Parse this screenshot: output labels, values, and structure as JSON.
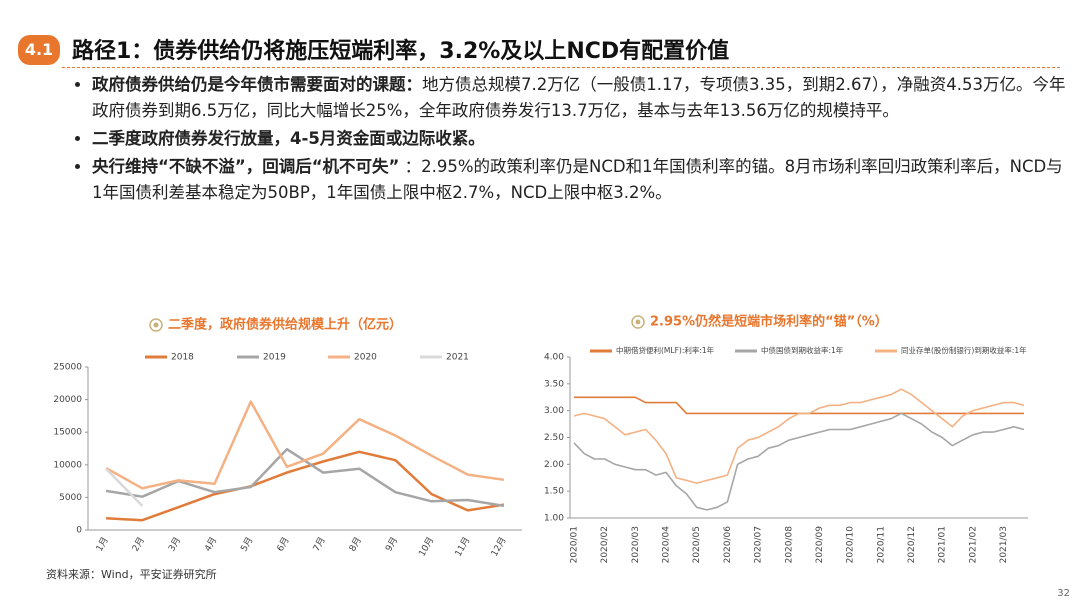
{
  "header": {
    "badge": "4.1",
    "title": "路径1：债券供给仍将施压短端利率，3.2%及以上NCD有配置价值"
  },
  "bullets": [
    {
      "lead": "政府债券供给仍是今年债市需要面对的课题：",
      "text": "地方债总规模7.2万亿（一般债1.17，专项债3.35，到期2.67），净融资4.53万亿。今年政府债券到期6.5万亿，同比大幅增长25%，全年政府债券发行13.7万亿，基本与去年13.56万亿的规模持平。"
    },
    {
      "lead": "二季度政府债券发行放量，4-5月资金面或边际收紧。",
      "text": ""
    },
    {
      "lead": "央行维持“不缺不溢”，回调后“机不可失”",
      "text": " ：2.95%的政策利率仍是NCD和1年国债利率的锚。8月市场利率回归政策利率后，NCD与1年国债利差基本稳定为50BP，1年国债上限中枢2.7%，NCD上限中枢3.2%。"
    }
  ],
  "chart_data": [
    {
      "type": "line",
      "title": "二季度，政府债券供给规模上升（亿元）",
      "categories": [
        "1月",
        "2月",
        "3月",
        "4月",
        "5月",
        "6月",
        "7月",
        "8月",
        "9月",
        "10月",
        "11月",
        "12月"
      ],
      "series": [
        {
          "name": "2018",
          "color": "#e07b39",
          "values": [
            1800,
            1500,
            3500,
            5500,
            6700,
            8800,
            10500,
            12000,
            10700,
            5500,
            3000,
            3900
          ]
        },
        {
          "name": "2019",
          "color": "#a6a6a6",
          "values": [
            6000,
            5100,
            7500,
            5800,
            6600,
            12400,
            8800,
            9400,
            5800,
            4400,
            4600,
            3700
          ]
        },
        {
          "name": "2020",
          "color": "#f4b183",
          "values": [
            9500,
            6400,
            7600,
            7100,
            19700,
            9700,
            11700,
            17000,
            14500,
            11400,
            8500,
            7700
          ]
        },
        {
          "name": "2021",
          "color": "#d9d9d9",
          "values": [
            9400,
            3700,
            null,
            null,
            null,
            null,
            null,
            null,
            null,
            null,
            null,
            null
          ]
        }
      ],
      "ylim": [
        0,
        25000
      ],
      "yticks": [
        0,
        5000,
        10000,
        15000,
        20000,
        25000
      ],
      "grid": false
    },
    {
      "type": "line",
      "title": "2.95%仍然是短端市场利率的“锚”（%）",
      "categories": [
        "2020/01",
        null,
        null,
        "2020/02",
        null,
        null,
        "2020/03",
        null,
        null,
        "2020/04",
        null,
        null,
        "2020/05",
        null,
        null,
        "2020/06",
        null,
        null,
        "2020/07",
        null,
        null,
        "2020/08",
        null,
        null,
        "2020/09",
        null,
        null,
        "2020/10",
        null,
        null,
        "2020/11",
        null,
        null,
        "2020/12",
        null,
        null,
        "2021/01",
        null,
        null,
        "2021/02",
        null,
        null,
        "2021/03",
        null,
        null
      ],
      "series": [
        {
          "name": "中期借贷便利(MLF):利率:1年",
          "color": "#e07b39",
          "values": [
            3.25,
            3.25,
            3.25,
            3.25,
            3.25,
            3.25,
            3.25,
            3.15,
            3.15,
            3.15,
            3.15,
            2.95,
            2.95,
            2.95,
            2.95,
            2.95,
            2.95,
            2.95,
            2.95,
            2.95,
            2.95,
            2.95,
            2.95,
            2.95,
            2.95,
            2.95,
            2.95,
            2.95,
            2.95,
            2.95,
            2.95,
            2.95,
            2.95,
            2.95,
            2.95,
            2.95,
            2.95,
            2.95,
            2.95,
            2.95,
            2.95,
            2.95,
            2.95,
            2.95,
            2.95
          ]
        },
        {
          "name": "中债国债到期收益率:1年",
          "color": "#a6a6a6",
          "values": [
            2.4,
            2.2,
            2.1,
            2.1,
            2.0,
            1.95,
            1.9,
            1.9,
            1.8,
            1.85,
            1.6,
            1.45,
            1.2,
            1.15,
            1.2,
            1.3,
            2.0,
            2.1,
            2.15,
            2.3,
            2.35,
            2.45,
            2.5,
            2.55,
            2.6,
            2.65,
            2.65,
            2.65,
            2.7,
            2.75,
            2.8,
            2.85,
            2.95,
            2.85,
            2.75,
            2.6,
            2.5,
            2.35,
            2.45,
            2.55,
            2.6,
            2.6,
            2.65,
            2.7,
            2.65
          ]
        },
        {
          "name": "同业存单(股份制银行)到期收益率:1年",
          "color": "#f4b183",
          "values": [
            2.9,
            2.95,
            2.9,
            2.85,
            2.7,
            2.55,
            2.6,
            2.65,
            2.45,
            2.2,
            1.75,
            1.7,
            1.65,
            1.7,
            1.75,
            1.8,
            2.3,
            2.45,
            2.5,
            2.6,
            2.7,
            2.85,
            2.95,
            2.95,
            3.05,
            3.1,
            3.1,
            3.15,
            3.15,
            3.2,
            3.25,
            3.3,
            3.4,
            3.3,
            3.15,
            3.0,
            2.85,
            2.7,
            2.9,
            3.0,
            3.05,
            3.1,
            3.15,
            3.15,
            3.1
          ]
        }
      ],
      "ylim": [
        1,
        4
      ],
      "yticks": [
        {
          "value": 1,
          "label": "1.00"
        },
        {
          "value": 1.5,
          "label": "1.50"
        },
        {
          "value": 2,
          "label": "2.00"
        },
        {
          "value": 2.5,
          "label": "2.50"
        },
        {
          "value": 3,
          "label": "3.00"
        },
        {
          "value": 3.5,
          "label": "3.50"
        },
        {
          "value": 4,
          "label": "4.00"
        }
      ],
      "grid": false
    }
  ],
  "source": "资料来源：Wind，平安证券研究所",
  "page_number": "32"
}
